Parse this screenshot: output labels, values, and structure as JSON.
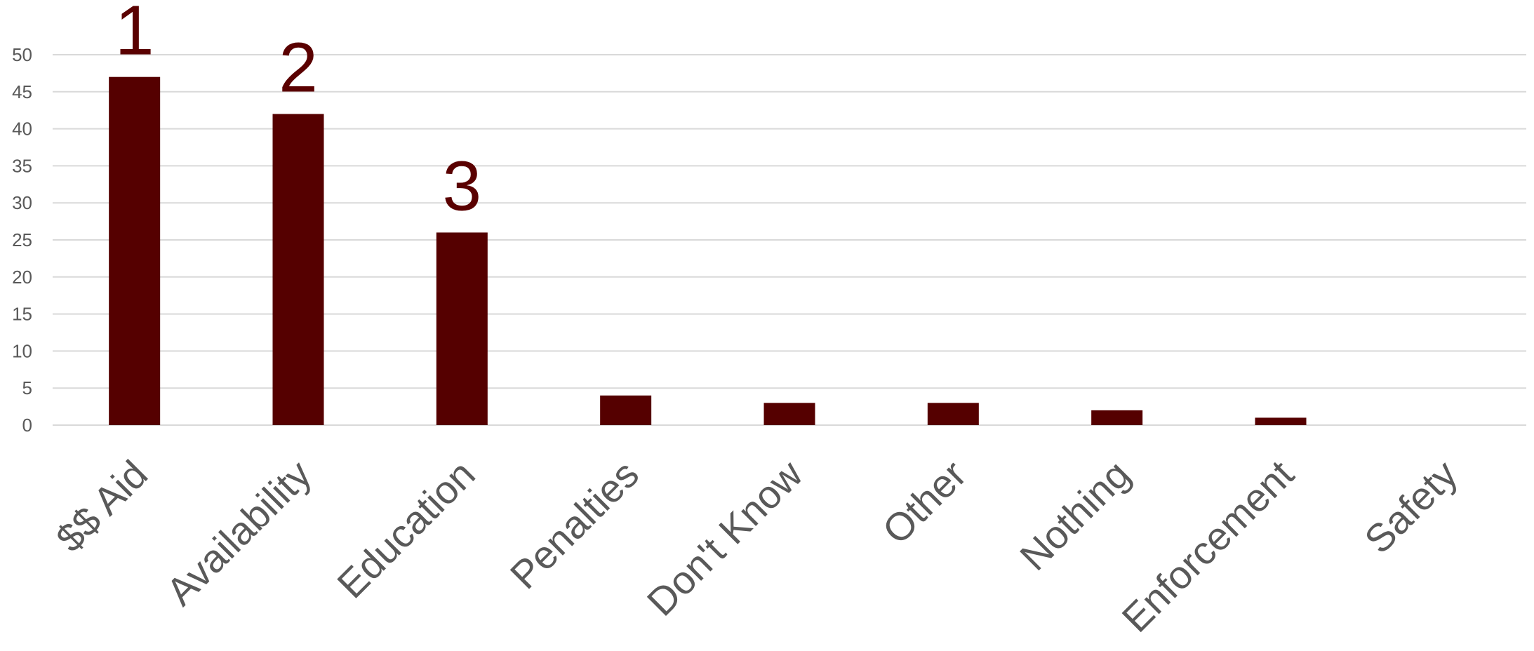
{
  "chart_data": {
    "type": "bar",
    "title": "",
    "xlabel": "",
    "ylabel": "",
    "categories": [
      "$$ Aid",
      "Availability",
      "Education",
      "Penalties",
      "Don't Know",
      "Other",
      "Nothing",
      "Enforcement",
      "Safety"
    ],
    "values": [
      47,
      42,
      26,
      4,
      3,
      3,
      2,
      1,
      0
    ],
    "ylim": [
      0,
      50
    ],
    "yticks": [
      "0",
      "5",
      "10",
      "15",
      "20",
      "25",
      "30",
      "35",
      "40",
      "45",
      "50"
    ],
    "grid": true,
    "legend": "none",
    "bar_color": "#550000",
    "rank_labels": [
      {
        "category": "$$ Aid",
        "text": "1"
      },
      {
        "category": "Availability",
        "text": "2"
      },
      {
        "category": "Education",
        "text": "3"
      }
    ]
  }
}
